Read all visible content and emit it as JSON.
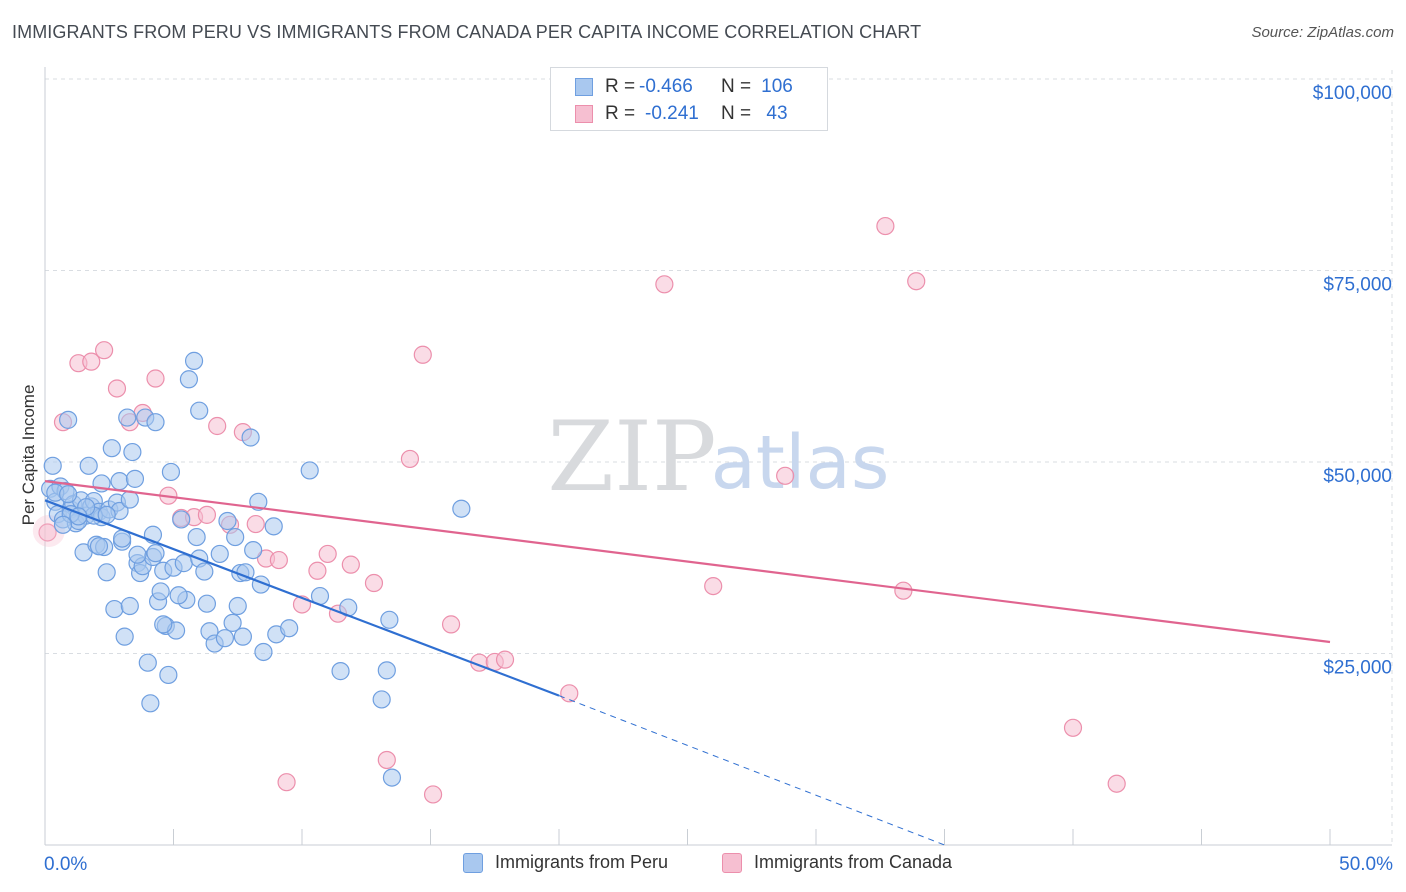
{
  "title": "IMMIGRANTS FROM PERU VS IMMIGRANTS FROM CANADA PER CAPITA INCOME CORRELATION CHART",
  "source": "Source: ZipAtlas.com",
  "watermark": {
    "zip": "ZIP",
    "atlas": "atlas"
  },
  "legend": {
    "peru": {
      "r_label": "R =",
      "r_value": "-0.466",
      "n_label": "N =",
      "n_value": "106"
    },
    "canada": {
      "r_label": "R =",
      "r_value": "-0.241",
      "n_label": "N =",
      "n_value": "43"
    }
  },
  "colors": {
    "peru_fill": "#a9c8ef",
    "peru_stroke": "#6f9fe0",
    "peru_line": "#2f6fd1",
    "canada_fill": "#f6bfd1",
    "canada_stroke": "#ec8fac",
    "canada_line": "#e0648f",
    "axis_text": "#2f6fd1",
    "grid": "#d9dde2"
  },
  "chart_data": {
    "type": "scatter",
    "title": "IMMIGRANTS FROM PERU VS IMMIGRANTS FROM CANADA PER CAPITA INCOME CORRELATION CHART",
    "xlabel": "",
    "ylabel": "Per Capita Income",
    "xlim": [
      0,
      50
    ],
    "ylim": [
      0,
      105000
    ],
    "x_tick_labels": [
      "0.0%",
      "50.0%"
    ],
    "y_ticks": [
      25000,
      50000,
      75000,
      100000
    ],
    "y_tick_labels": [
      "$25,000",
      "$50,000",
      "$75,000",
      "$100,000"
    ],
    "grid": true,
    "legend_position": "bottom-center",
    "series": [
      {
        "name": "Immigrants from Peru",
        "r": -0.466,
        "n": 106,
        "trend": {
          "x_start": 0,
          "y_start": 45000,
          "x_solid_end": 20,
          "y_solid_end": 19500,
          "x_dash_end": 35,
          "y_dash_end": 0
        },
        "points": [
          [
            0.2,
            46500
          ],
          [
            0.3,
            49500
          ],
          [
            0.4,
            44800
          ],
          [
            0.5,
            43200
          ],
          [
            0.6,
            46800
          ],
          [
            0.7,
            42500
          ],
          [
            0.8,
            46200
          ],
          [
            0.9,
            55500
          ],
          [
            1.0,
            43800
          ],
          [
            1.1,
            44500
          ],
          [
            1.2,
            42000
          ],
          [
            1.4,
            45000
          ],
          [
            1.5,
            38200
          ],
          [
            1.6,
            43000
          ],
          [
            1.7,
            49500
          ],
          [
            1.8,
            44200
          ],
          [
            1.9,
            44900
          ],
          [
            2.0,
            39200
          ],
          [
            2.1,
            43500
          ],
          [
            2.2,
            42800
          ],
          [
            2.3,
            38900
          ],
          [
            2.4,
            35600
          ],
          [
            2.5,
            43800
          ],
          [
            2.6,
            51800
          ],
          [
            2.7,
            30800
          ],
          [
            2.8,
            44700
          ],
          [
            2.9,
            47500
          ],
          [
            3.0,
            39600
          ],
          [
            3.1,
            27200
          ],
          [
            3.2,
            55800
          ],
          [
            3.3,
            31200
          ],
          [
            3.4,
            51300
          ],
          [
            3.5,
            47800
          ],
          [
            3.6,
            36800
          ],
          [
            3.7,
            35500
          ],
          [
            3.8,
            36400
          ],
          [
            3.9,
            55800
          ],
          [
            4.0,
            23800
          ],
          [
            4.1,
            18500
          ],
          [
            4.2,
            37600
          ],
          [
            4.3,
            55200
          ],
          [
            4.4,
            31800
          ],
          [
            4.5,
            33100
          ],
          [
            4.6,
            35800
          ],
          [
            4.7,
            28600
          ],
          [
            4.8,
            22200
          ],
          [
            4.9,
            48700
          ],
          [
            5.0,
            36200
          ],
          [
            5.1,
            28000
          ],
          [
            5.3,
            42500
          ],
          [
            5.4,
            36800
          ],
          [
            5.5,
            32000
          ],
          [
            5.8,
            63200
          ],
          [
            5.9,
            40200
          ],
          [
            6.0,
            37400
          ],
          [
            6.2,
            35700
          ],
          [
            6.4,
            27900
          ],
          [
            6.6,
            26300
          ],
          [
            7.0,
            27000
          ],
          [
            7.1,
            42300
          ],
          [
            7.3,
            29000
          ],
          [
            7.4,
            40200
          ],
          [
            7.5,
            31200
          ],
          [
            7.6,
            35500
          ],
          [
            7.7,
            27200
          ],
          [
            8.0,
            53200
          ],
          [
            8.1,
            38500
          ],
          [
            8.3,
            44800
          ],
          [
            8.4,
            34000
          ],
          [
            8.5,
            25200
          ],
          [
            8.9,
            41600
          ],
          [
            9.0,
            27500
          ],
          [
            9.5,
            28300
          ],
          [
            10.3,
            48900
          ],
          [
            10.7,
            32500
          ],
          [
            11.5,
            22700
          ],
          [
            11.8,
            31000
          ],
          [
            13.1,
            19000
          ],
          [
            13.3,
            22800
          ],
          [
            13.4,
            29400
          ],
          [
            13.5,
            8800
          ],
          [
            16.2,
            43900
          ],
          [
            0.4,
            46000
          ],
          [
            1.3,
            42300
          ],
          [
            1.9,
            43000
          ],
          [
            2.1,
            39000
          ],
          [
            3.0,
            40000
          ],
          [
            5.6,
            60800
          ],
          [
            6.0,
            56700
          ],
          [
            4.2,
            40500
          ],
          [
            2.9,
            43600
          ],
          [
            1.0,
            43200
          ],
          [
            0.7,
            41800
          ],
          [
            1.6,
            44100
          ],
          [
            2.4,
            43100
          ],
          [
            3.6,
            37900
          ],
          [
            4.6,
            28800
          ],
          [
            5.2,
            32600
          ],
          [
            6.8,
            38000
          ],
          [
            7.8,
            35600
          ],
          [
            3.3,
            45100
          ],
          [
            2.2,
            47200
          ],
          [
            1.3,
            42900
          ],
          [
            0.9,
            45800
          ],
          [
            6.3,
            31500
          ],
          [
            4.3,
            38100
          ]
        ]
      },
      {
        "name": "Immigrants from Canada",
        "r": -0.241,
        "n": 43,
        "trend": {
          "x_start": 0,
          "y_start": 47500,
          "x_end": 50,
          "y_end": 26500
        },
        "points": [
          [
            0.1,
            40800
          ],
          [
            0.7,
            55200
          ],
          [
            1.3,
            62900
          ],
          [
            1.8,
            63100
          ],
          [
            2.3,
            64600
          ],
          [
            2.8,
            59600
          ],
          [
            3.3,
            55200
          ],
          [
            3.8,
            56400
          ],
          [
            4.3,
            60900
          ],
          [
            4.8,
            45600
          ],
          [
            5.3,
            42700
          ],
          [
            5.8,
            42800
          ],
          [
            6.3,
            43100
          ],
          [
            6.7,
            54700
          ],
          [
            7.2,
            41800
          ],
          [
            7.7,
            53900
          ],
          [
            8.2,
            41900
          ],
          [
            8.6,
            37400
          ],
          [
            9.1,
            37200
          ],
          [
            9.4,
            8200
          ],
          [
            10.0,
            31400
          ],
          [
            10.6,
            35800
          ],
          [
            11.0,
            38000
          ],
          [
            11.4,
            30200
          ],
          [
            11.9,
            36600
          ],
          [
            12.8,
            34200
          ],
          [
            13.3,
            11100
          ],
          [
            14.2,
            50400
          ],
          [
            14.7,
            64000
          ],
          [
            15.1,
            6600
          ],
          [
            15.8,
            28800
          ],
          [
            16.9,
            23800
          ],
          [
            17.5,
            23900
          ],
          [
            17.9,
            24200
          ],
          [
            20.4,
            19800
          ],
          [
            24.1,
            73200
          ],
          [
            26.0,
            33800
          ],
          [
            28.8,
            48200
          ],
          [
            32.7,
            80800
          ],
          [
            33.4,
            33200
          ],
          [
            33.9,
            73600
          ],
          [
            40.0,
            15300
          ],
          [
            41.7,
            8000
          ]
        ]
      }
    ]
  },
  "bottom_legend": {
    "peru": "Immigrants from Peru",
    "canada": "Immigrants from Canada"
  }
}
